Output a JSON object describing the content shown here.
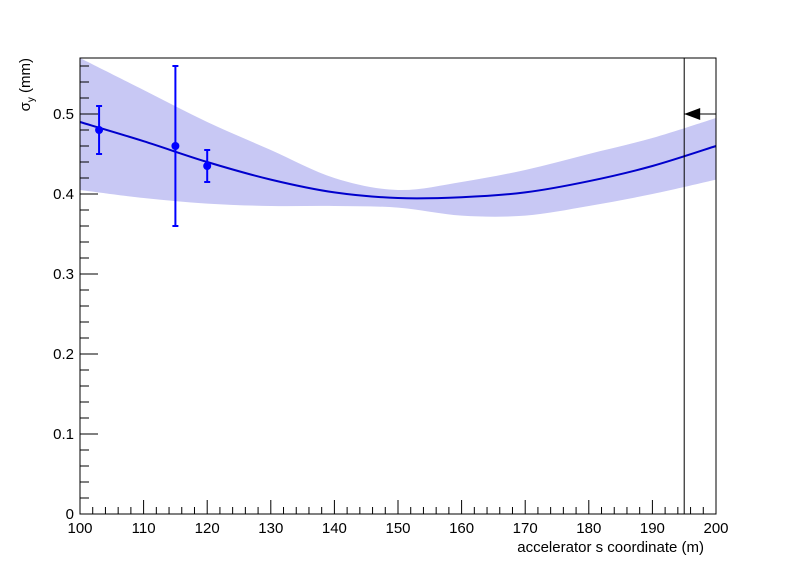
{
  "chart_data": {
    "type": "scatter",
    "title": "",
    "xlabel": "accelerator s coordinate (m)",
    "ylabel": {
      "main": "σ",
      "sub": "y",
      "unit": " (mm)"
    },
    "xlim": [
      100,
      200
    ],
    "ylim": [
      0,
      0.57
    ],
    "x_ticks": [
      100,
      110,
      120,
      130,
      140,
      150,
      160,
      170,
      180,
      190,
      200
    ],
    "y_ticks": [
      0,
      0.1,
      0.2,
      0.3,
      0.4,
      0.5
    ],
    "y_tick_labels": [
      "0",
      "0.1",
      "0.2",
      "0.3",
      "0.4",
      "0.5"
    ],
    "grid": false,
    "measurements": {
      "points": [
        {
          "x": 103,
          "y": 0.48,
          "yerr_low": 0.03,
          "yerr_high": 0.03
        },
        {
          "x": 115,
          "y": 0.46,
          "yerr_low": 0.1,
          "yerr_high": 0.1
        },
        {
          "x": 120,
          "y": 0.435,
          "yerr_low": 0.02,
          "yerr_high": 0.02
        }
      ],
      "color": "#0000ff"
    },
    "fit_curve": {
      "x": [
        100,
        110,
        120,
        130,
        140,
        150,
        160,
        170,
        180,
        190,
        200
      ],
      "y": [
        0.49,
        0.466,
        0.44,
        0.418,
        0.402,
        0.395,
        0.396,
        0.402,
        0.416,
        0.435,
        0.46
      ],
      "color": "#0000cc"
    },
    "uncertainty_band": {
      "x": [
        100,
        110,
        120,
        130,
        140,
        150,
        160,
        170,
        180,
        190,
        200
      ],
      "upper": [
        0.57,
        0.53,
        0.49,
        0.455,
        0.42,
        0.405,
        0.415,
        0.43,
        0.45,
        0.47,
        0.495
      ],
      "lower": [
        0.405,
        0.395,
        0.388,
        0.385,
        0.385,
        0.383,
        0.373,
        0.373,
        0.385,
        0.4,
        0.418
      ],
      "color": "#c8c8f4"
    },
    "marker_line": {
      "x": 195,
      "color": "#000000"
    },
    "arrow_marker": {
      "x": 195,
      "y": 0.5,
      "color": "#000000"
    }
  }
}
